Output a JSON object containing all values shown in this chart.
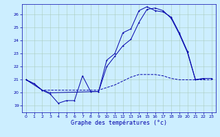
{
  "title": "Graphe des températures (°c)",
  "bg_color": "#cceeff",
  "line_color": "#0000aa",
  "grid_color": "#aaccbb",
  "ylim": [
    18.5,
    26.8
  ],
  "xlim": [
    -0.5,
    23.5
  ],
  "yticks": [
    19,
    20,
    21,
    22,
    23,
    24,
    25,
    26
  ],
  "xticks": [
    0,
    1,
    2,
    3,
    4,
    5,
    6,
    7,
    8,
    9,
    10,
    11,
    12,
    13,
    14,
    15,
    16,
    17,
    18,
    19,
    20,
    21,
    22,
    23
  ],
  "series1_x": [
    0,
    1,
    2,
    3,
    4,
    5,
    6,
    7,
    8,
    9,
    10,
    11,
    12,
    13,
    14,
    15,
    16,
    17,
    18,
    19,
    20,
    21,
    22,
    23
  ],
  "series1_y": [
    21.0,
    20.7,
    20.2,
    19.9,
    19.2,
    19.4,
    19.4,
    21.3,
    20.1,
    20.1,
    22.5,
    23.0,
    24.6,
    24.9,
    26.3,
    26.6,
    26.3,
    26.2,
    25.8,
    24.6,
    23.2,
    21.0,
    21.1,
    21.1
  ],
  "series2_x": [
    0,
    1,
    2,
    3,
    4,
    5,
    6,
    7,
    8,
    9,
    10,
    11,
    12,
    13,
    14,
    15,
    16,
    17,
    18,
    19,
    20,
    21,
    22,
    23
  ],
  "series2_y": [
    21.0,
    20.7,
    20.2,
    20.2,
    20.2,
    20.2,
    20.2,
    20.2,
    20.2,
    20.2,
    20.4,
    20.6,
    20.9,
    21.2,
    21.4,
    21.4,
    21.4,
    21.3,
    21.1,
    21.0,
    21.0,
    21.0,
    21.0,
    21.0
  ],
  "series3_x": [
    0,
    2,
    3,
    9,
    10,
    11,
    12,
    13,
    14,
    15,
    16,
    17,
    18,
    19,
    20,
    21,
    22,
    23
  ],
  "series3_y": [
    21.0,
    20.2,
    20.0,
    20.1,
    22.0,
    22.8,
    23.6,
    24.1,
    25.4,
    26.4,
    26.5,
    26.3,
    25.7,
    24.5,
    23.1,
    21.0,
    21.1,
    21.1
  ],
  "ylabel_fontsize": 4.5,
  "xlabel_fontsize": 6.0,
  "tick_labelsize": 4.5,
  "lw": 0.7,
  "ms": 2.0
}
